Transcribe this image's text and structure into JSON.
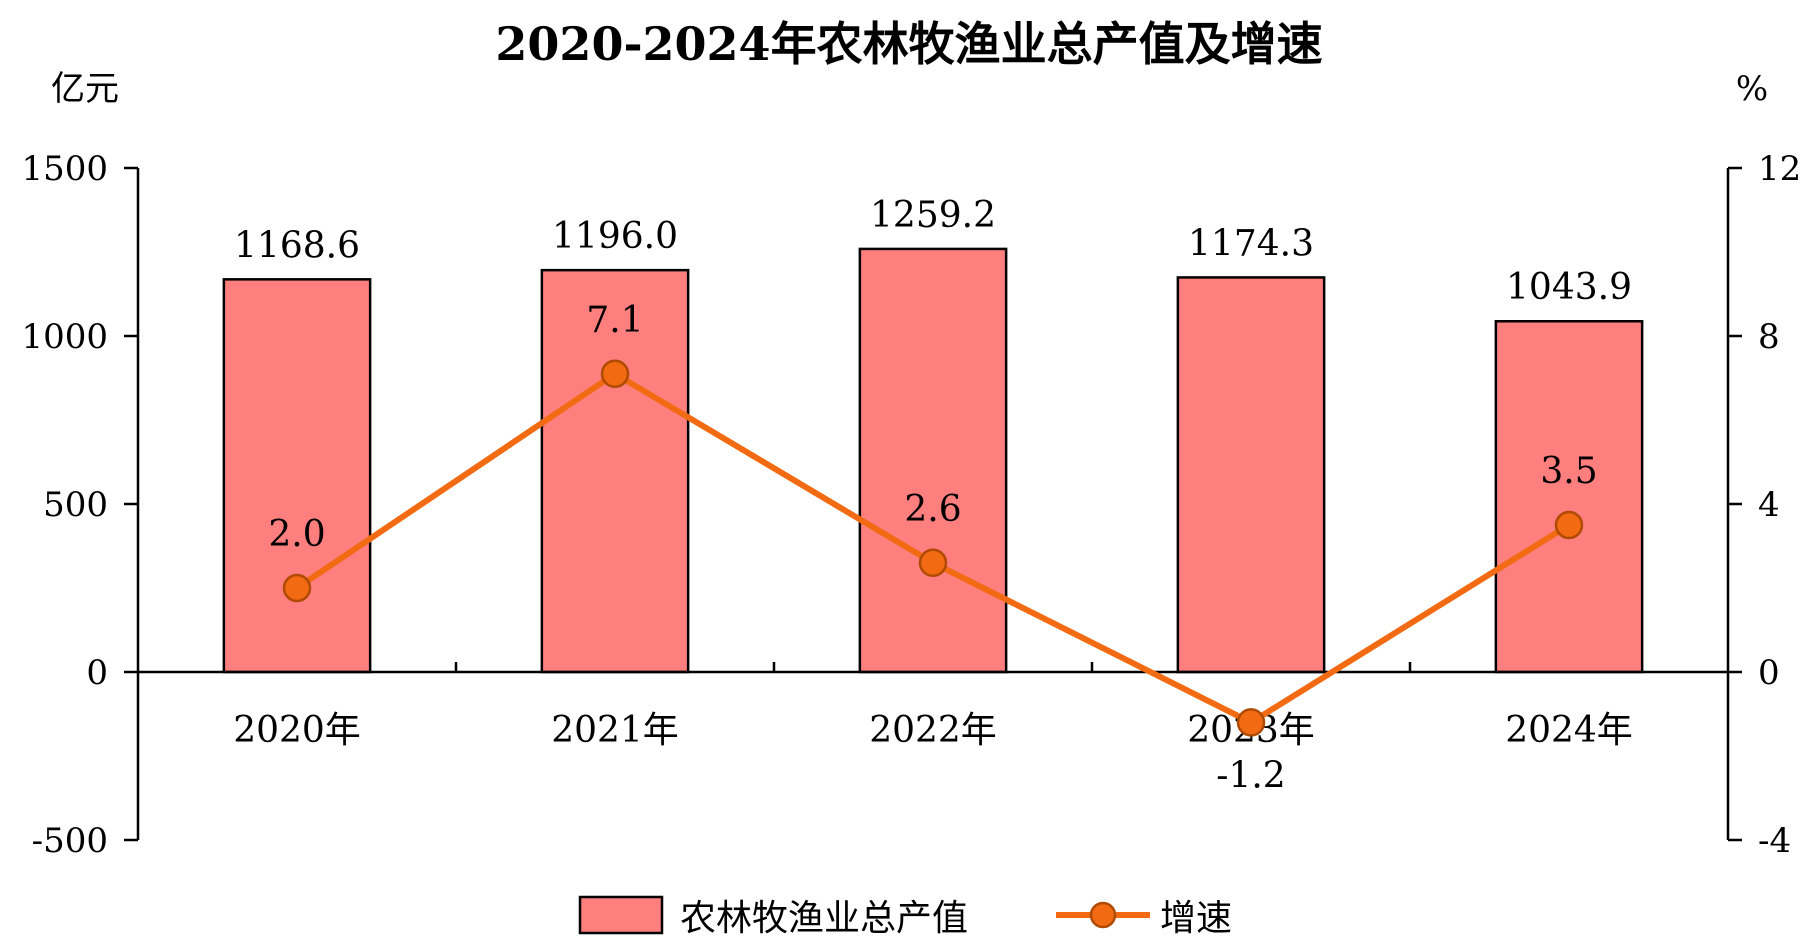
{
  "chart_data": {
    "type": "bar",
    "title": "2020-2024年农林牧渔业总产值及增速",
    "y_unit_left": "亿元",
    "y_unit_right": "%",
    "categories": [
      "2020年",
      "2021年",
      "2022年",
      "2023年",
      "2024年"
    ],
    "series": [
      {
        "name": "农林牧渔业总产值",
        "type": "bar",
        "axis": "left",
        "values": [
          1168.6,
          1196.0,
          1259.2,
          1174.3,
          1043.9
        ],
        "labels": [
          "1168.6",
          "1196.0",
          "1259.2",
          "1174.3",
          "1043.9"
        ]
      },
      {
        "name": "增速",
        "type": "line",
        "axis": "right",
        "values": [
          2.0,
          7.1,
          2.6,
          -1.2,
          3.5
        ],
        "labels": [
          "2.0",
          "7.1",
          "2.6",
          "-1.2",
          "3.5"
        ]
      }
    ],
    "ylim_left": [
      -500,
      1500
    ],
    "yticks_left": [
      "1500",
      "1000",
      "500",
      "0",
      "-500"
    ],
    "ylim_right": [
      -4,
      12
    ],
    "yticks_right": [
      "12",
      "8",
      "4",
      "0",
      "-4"
    ],
    "legend_position": "bottom",
    "grid": false
  },
  "colors": {
    "bar_fill": "#FF7F7F",
    "bar_stroke": "#000000",
    "line": "#F26B12",
    "marker_fill": "#F26B12",
    "marker_stroke": "#B04A00",
    "axis": "#000000"
  }
}
